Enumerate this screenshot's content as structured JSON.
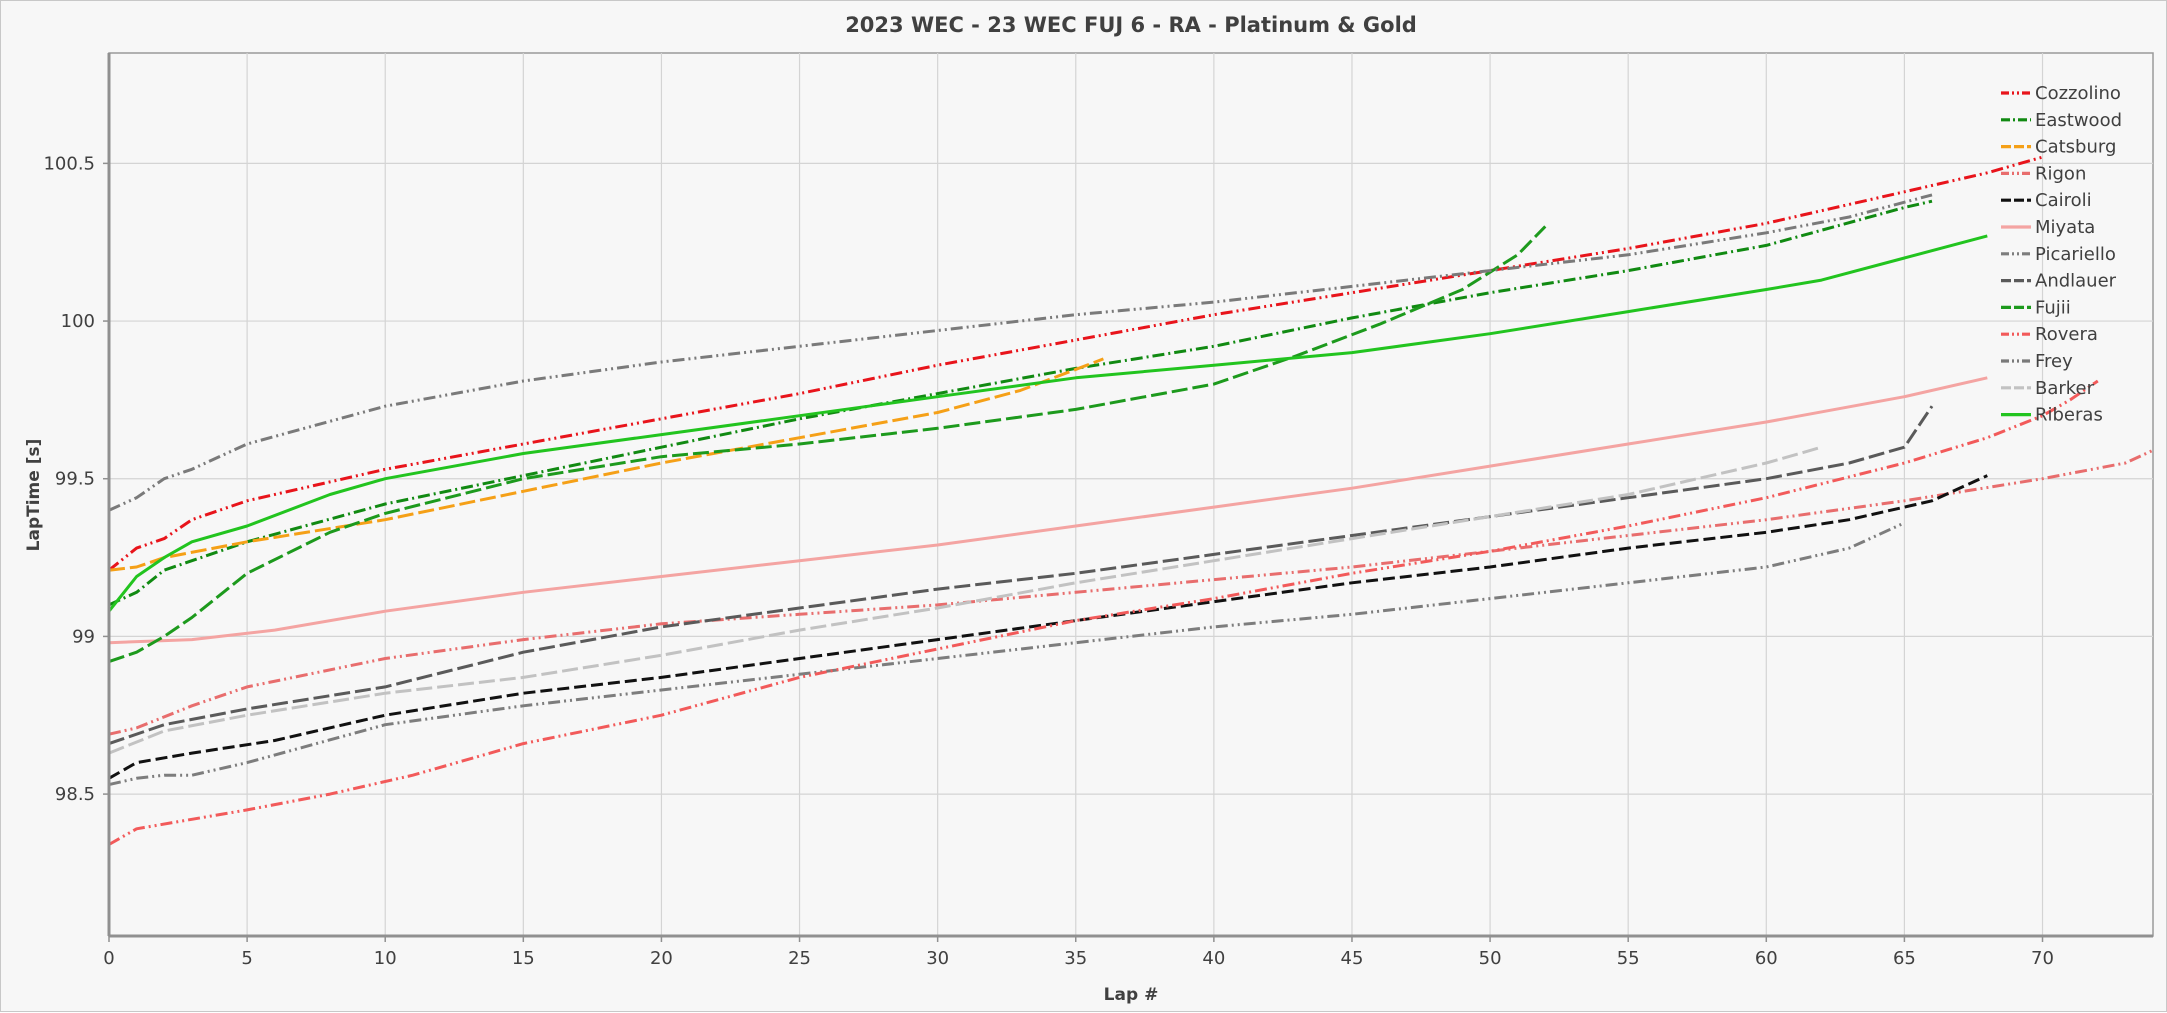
{
  "chart_data": {
    "type": "line",
    "title": "2023 WEC - 23 WEC FUJ 6 - RA -  Platinum & Gold",
    "xlabel": "Lap #",
    "ylabel": "LapTime [s]",
    "xlim": [
      0,
      74
    ],
    "ylim": [
      98.05,
      100.85
    ],
    "xticks": [
      "0",
      "5",
      "10",
      "15",
      "20",
      "25",
      "30",
      "35",
      "40",
      "45",
      "50",
      "55",
      "60",
      "65",
      "70"
    ],
    "yticks": [
      "98.5",
      "99",
      "99.5",
      "100",
      "100.5"
    ],
    "grid": true,
    "legend_position": "top-right",
    "series": [
      {
        "name": "Cozzolino",
        "color": "#e8141b",
        "dash": "dashdotdot",
        "x": [
          0,
          1,
          2,
          3,
          5,
          10,
          15,
          20,
          25,
          30,
          35,
          40,
          45,
          50,
          55,
          60,
          65,
          68,
          70
        ],
        "y": [
          99.21,
          99.28,
          99.31,
          99.37,
          99.43,
          99.53,
          99.61,
          99.69,
          99.77,
          99.86,
          99.94,
          100.02,
          100.09,
          100.16,
          100.23,
          100.31,
          100.41,
          100.47,
          100.52
        ]
      },
      {
        "name": "Eastwood",
        "color": "#118a12",
        "dash": "dashdot",
        "x": [
          0,
          1,
          2,
          5,
          10,
          15,
          20,
          25,
          30,
          35,
          40,
          45,
          50,
          55,
          60,
          65,
          66
        ],
        "y": [
          99.1,
          99.14,
          99.21,
          99.3,
          99.42,
          99.51,
          99.6,
          99.69,
          99.77,
          99.85,
          99.92,
          100.01,
          100.09,
          100.16,
          100.24,
          100.36,
          100.38
        ]
      },
      {
        "name": "Catsburg",
        "color": "#f5a017",
        "dash": "dashlong",
        "x": [
          0,
          1,
          2,
          5,
          10,
          15,
          20,
          25,
          30,
          33,
          36
        ],
        "y": [
          99.21,
          99.22,
          99.25,
          99.3,
          99.37,
          99.46,
          99.55,
          99.63,
          99.71,
          99.78,
          99.88
        ]
      },
      {
        "name": "Rigon",
        "color": "#e86d6d",
        "dash": "dashdotdot",
        "x": [
          0,
          1,
          3,
          5,
          10,
          15,
          20,
          25,
          30,
          35,
          40,
          45,
          50,
          55,
          60,
          65,
          70,
          73,
          74
        ],
        "y": [
          98.69,
          98.71,
          98.78,
          98.84,
          98.93,
          98.99,
          99.04,
          99.07,
          99.1,
          99.14,
          99.18,
          99.22,
          99.27,
          99.32,
          99.37,
          99.43,
          99.5,
          99.55,
          99.59
        ]
      },
      {
        "name": "Cairoli",
        "color": "#111111",
        "dash": "dash",
        "x": [
          0,
          1,
          3,
          6,
          10,
          15,
          20,
          25,
          30,
          35,
          40,
          45,
          50,
          55,
          60,
          63,
          66,
          68
        ],
        "y": [
          98.55,
          98.6,
          98.63,
          98.67,
          98.75,
          98.82,
          98.87,
          98.93,
          98.99,
          99.05,
          99.11,
          99.17,
          99.22,
          99.28,
          99.33,
          99.37,
          99.43,
          99.51
        ]
      },
      {
        "name": "Miyata",
        "color": "#f4a4a2",
        "dash": "solid",
        "x": [
          0,
          3,
          6,
          10,
          15,
          20,
          25,
          30,
          35,
          40,
          45,
          50,
          55,
          60,
          65,
          68
        ],
        "y": [
          98.98,
          98.99,
          99.02,
          99.08,
          99.14,
          99.19,
          99.24,
          99.29,
          99.35,
          99.41,
          99.47,
          99.54,
          99.61,
          99.68,
          99.76,
          99.82
        ]
      },
      {
        "name": "Picariello",
        "color": "#7d7d7d",
        "dash": "dashdotdot",
        "x": [
          0,
          1,
          2,
          3,
          5,
          10,
          15,
          20,
          25,
          30,
          35,
          40,
          45,
          50,
          55,
          60,
          63,
          65
        ],
        "y": [
          98.53,
          98.55,
          98.56,
          98.56,
          98.6,
          98.72,
          98.78,
          98.83,
          98.88,
          98.93,
          98.98,
          99.03,
          99.07,
          99.12,
          99.17,
          99.22,
          99.28,
          99.36
        ]
      },
      {
        "name": "Andlauer",
        "color": "#5a5a5a",
        "dash": "dashlong",
        "x": [
          0,
          2,
          5,
          10,
          15,
          20,
          25,
          30,
          35,
          40,
          45,
          50,
          55,
          60,
          63,
          65,
          66
        ],
        "y": [
          98.66,
          98.72,
          98.77,
          98.84,
          98.95,
          99.03,
          99.09,
          99.15,
          99.2,
          99.26,
          99.32,
          99.38,
          99.44,
          99.5,
          99.55,
          99.6,
          99.73
        ]
      },
      {
        "name": "Fujii",
        "color": "#1d9a1d",
        "dash": "dashlong",
        "x": [
          0,
          1,
          2,
          3,
          5,
          8,
          10,
          15,
          20,
          25,
          30,
          35,
          40,
          43,
          46,
          49,
          51,
          52
        ],
        "y": [
          98.92,
          98.95,
          99.0,
          99.06,
          99.2,
          99.33,
          99.39,
          99.5,
          99.57,
          99.61,
          99.66,
          99.72,
          99.8,
          99.89,
          99.99,
          100.1,
          100.21,
          100.3
        ]
      },
      {
        "name": "Rovera",
        "color": "#f25a5a",
        "dash": "dashdotdot",
        "x": [
          0,
          1,
          3,
          5,
          8,
          11,
          15,
          20,
          25,
          30,
          35,
          40,
          45,
          50,
          55,
          60,
          65,
          68,
          70,
          71,
          72
        ],
        "y": [
          98.34,
          98.39,
          98.42,
          98.45,
          98.5,
          98.56,
          98.66,
          98.75,
          98.87,
          98.96,
          99.05,
          99.12,
          99.2,
          99.27,
          99.35,
          99.44,
          99.55,
          99.63,
          99.7,
          99.75,
          99.81
        ]
      },
      {
        "name": "Frey",
        "color": "#7a7a7a",
        "dash": "dashdotdot",
        "x": [
          0,
          1,
          2,
          3,
          5,
          10,
          15,
          20,
          25,
          30,
          35,
          40,
          45,
          50,
          55,
          60,
          63,
          66
        ],
        "y": [
          99.4,
          99.44,
          99.5,
          99.53,
          99.61,
          99.73,
          99.81,
          99.87,
          99.92,
          99.97,
          100.02,
          100.06,
          100.11,
          100.16,
          100.21,
          100.28,
          100.33,
          100.4
        ]
      },
      {
        "name": "Barker",
        "color": "#c2c2c2",
        "dash": "dashlong",
        "x": [
          0,
          2,
          5,
          10,
          15,
          20,
          25,
          30,
          35,
          40,
          45,
          50,
          55,
          60,
          62
        ],
        "y": [
          98.63,
          98.7,
          98.75,
          98.82,
          98.87,
          98.94,
          99.02,
          99.09,
          99.17,
          99.24,
          99.31,
          99.38,
          99.45,
          99.55,
          99.6
        ]
      },
      {
        "name": "Riberas",
        "color": "#22c41f",
        "dash": "solid",
        "x": [
          0,
          1,
          2,
          3,
          5,
          8,
          10,
          15,
          20,
          25,
          30,
          35,
          40,
          45,
          50,
          55,
          60,
          62,
          65,
          68
        ],
        "y": [
          99.08,
          99.19,
          99.25,
          99.3,
          99.35,
          99.45,
          99.5,
          99.58,
          99.64,
          99.7,
          99.76,
          99.82,
          99.86,
          99.9,
          99.96,
          100.03,
          100.1,
          100.13,
          100.2,
          100.27
        ]
      }
    ]
  }
}
